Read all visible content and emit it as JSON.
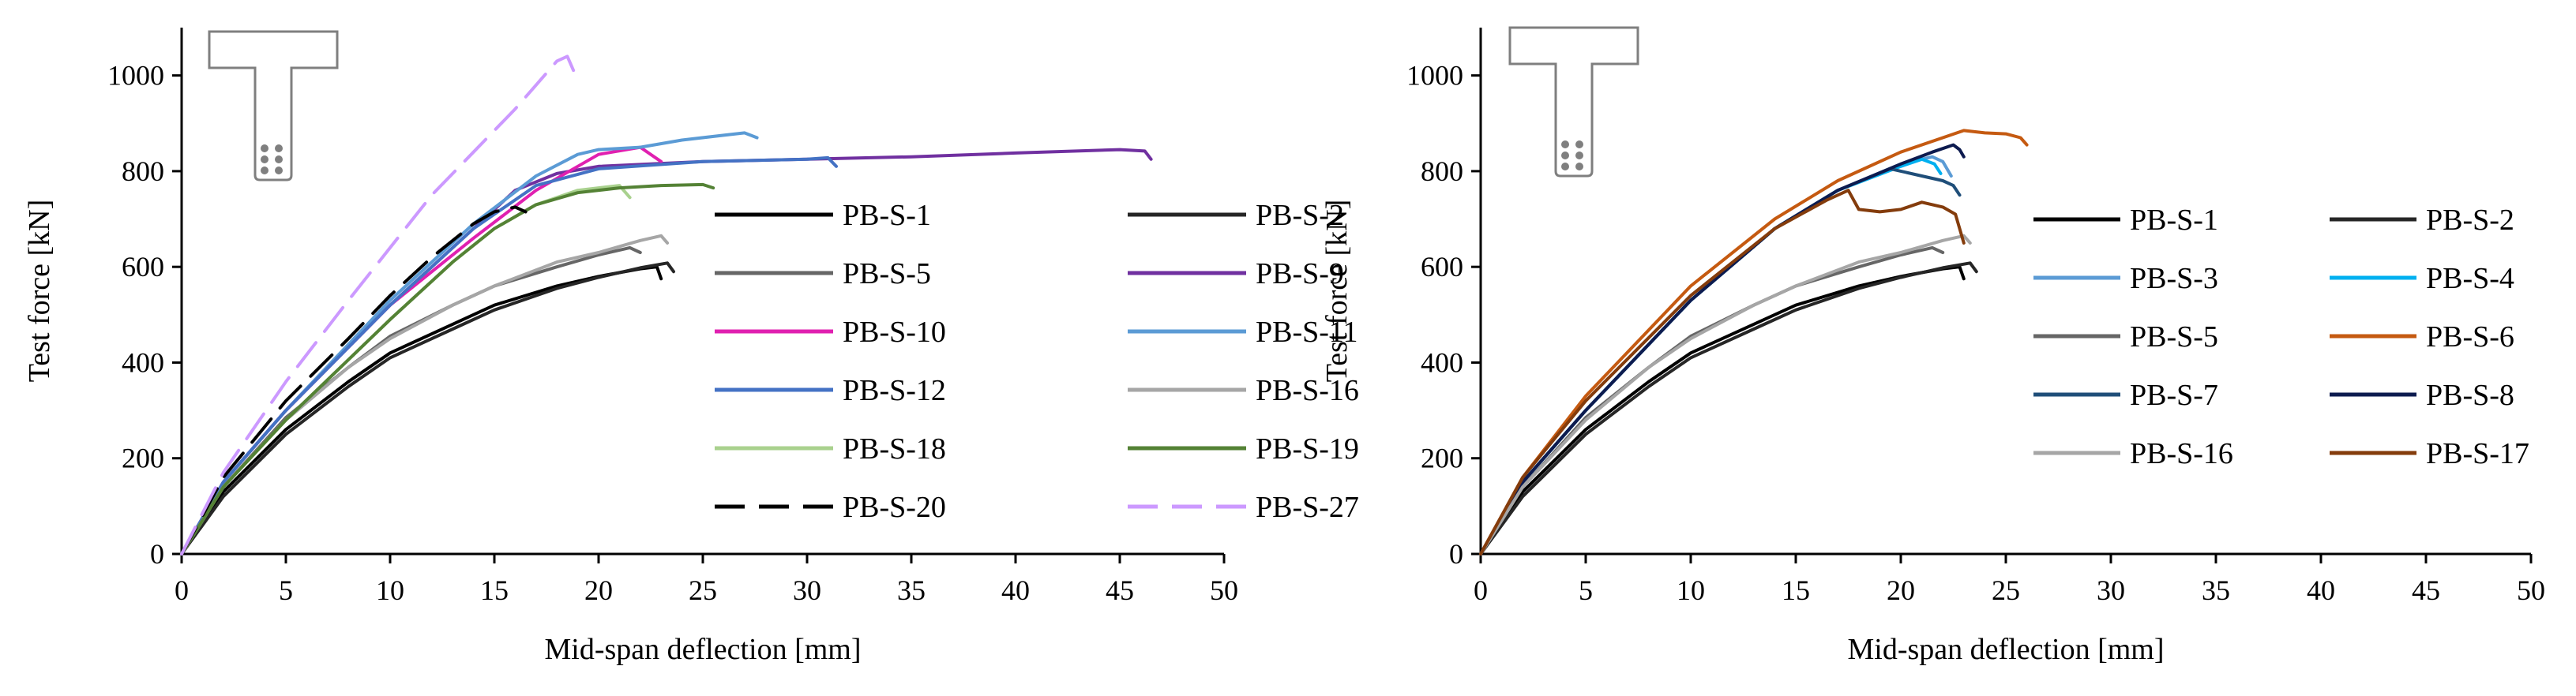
{
  "chart_data": [
    {
      "type": "line",
      "xlabel": "Mid-span deflection [mm]",
      "ylabel": "Test force [kN]",
      "xlim": [
        0,
        50
      ],
      "ylim": [
        0,
        1100
      ],
      "xticks": [
        0,
        5,
        10,
        15,
        20,
        25,
        30,
        35,
        40,
        45,
        50
      ],
      "yticks": [
        0,
        200,
        400,
        600,
        800,
        1000
      ],
      "legend_position": "bottom-right",
      "inset_icon": "t-beam-cross-section-icon",
      "series": [
        {
          "name": "PB-S-1",
          "color": "#000000",
          "dash": "solid",
          "x": [
            0,
            2,
            5,
            8,
            10,
            13,
            15,
            18,
            20,
            22,
            22.8,
            23
          ],
          "y": [
            0,
            130,
            260,
            360,
            420,
            480,
            520,
            560,
            580,
            596,
            600,
            575
          ]
        },
        {
          "name": "PB-S-2",
          "color": "#262626",
          "dash": "solid",
          "x": [
            0,
            2,
            5,
            8,
            10,
            13,
            15,
            18,
            20,
            22,
            23.3,
            23.6
          ],
          "y": [
            0,
            120,
            250,
            350,
            410,
            470,
            510,
            555,
            578,
            598,
            608,
            590
          ]
        },
        {
          "name": "PB-S-5",
          "color": "#666666",
          "dash": "solid",
          "x": [
            0,
            2,
            5,
            8,
            10,
            13,
            15,
            18,
            20,
            21.5,
            22
          ],
          "y": [
            0,
            140,
            285,
            390,
            455,
            520,
            560,
            600,
            625,
            640,
            630
          ]
        },
        {
          "name": "PB-S-9",
          "color": "#7030a0",
          "dash": "solid",
          "x": [
            0,
            2,
            5,
            10,
            14,
            16,
            18,
            20,
            25,
            30,
            35,
            40,
            45,
            46.2,
            46.5
          ],
          "y": [
            0,
            150,
            300,
            520,
            680,
            760,
            795,
            810,
            820,
            825,
            830,
            838,
            845,
            842,
            825
          ]
        },
        {
          "name": "PB-S-10",
          "color": "#e020b0",
          "dash": "solid",
          "x": [
            0,
            2,
            5,
            10,
            14,
            17,
            20,
            22,
            23
          ],
          "y": [
            0,
            150,
            300,
            520,
            660,
            760,
            835,
            850,
            820
          ]
        },
        {
          "name": "PB-S-11",
          "color": "#5b9bd5",
          "dash": "solid",
          "x": [
            0,
            2,
            5,
            10,
            14,
            17,
            19,
            20,
            22,
            24,
            26,
            27,
            27.6
          ],
          "y": [
            0,
            150,
            300,
            530,
            690,
            790,
            835,
            845,
            850,
            865,
            875,
            880,
            870
          ]
        },
        {
          "name": "PB-S-12",
          "color": "#4472c4",
          "dash": "solid",
          "x": [
            0,
            2,
            5,
            10,
            14,
            17,
            20,
            25,
            30,
            31,
            31.4
          ],
          "y": [
            0,
            150,
            300,
            520,
            680,
            770,
            805,
            820,
            825,
            828,
            810
          ]
        },
        {
          "name": "PB-S-16",
          "color": "#a6a6a6",
          "dash": "solid",
          "x": [
            0,
            2,
            5,
            8,
            10,
            13,
            15,
            18,
            20,
            22,
            23,
            23.3
          ],
          "y": [
            0,
            140,
            280,
            390,
            450,
            520,
            560,
            610,
            630,
            655,
            665,
            650
          ]
        },
        {
          "name": "PB-S-18",
          "color": "#a9d18e",
          "dash": "solid",
          "x": [
            0,
            2,
            5,
            10,
            13,
            15,
            17,
            19,
            21,
            21.5
          ],
          "y": [
            0,
            140,
            280,
            490,
            610,
            680,
            730,
            760,
            770,
            745
          ]
        },
        {
          "name": "PB-S-19",
          "color": "#548235",
          "dash": "solid",
          "x": [
            0,
            2,
            5,
            10,
            13,
            15,
            17,
            19,
            21,
            23,
            25,
            25.5
          ],
          "y": [
            0,
            140,
            280,
            490,
            610,
            680,
            730,
            755,
            765,
            770,
            772,
            765
          ]
        },
        {
          "name": "PB-S-20",
          "color": "#000000",
          "dash": "long-dash",
          "x": [
            0,
            2,
            5,
            8,
            10,
            12,
            14,
            15,
            16,
            16.5
          ],
          "y": [
            0,
            160,
            320,
            450,
            540,
            620,
            690,
            715,
            725,
            715
          ]
        },
        {
          "name": "PB-S-27",
          "color": "#cc99ff",
          "dash": "long-dash",
          "x": [
            0,
            2,
            5,
            8,
            10,
            12,
            14,
            16,
            17,
            18,
            18.5,
            18.8
          ],
          "y": [
            0,
            170,
            360,
            530,
            640,
            750,
            840,
            930,
            980,
            1030,
            1040,
            1010
          ]
        }
      ]
    },
    {
      "type": "line",
      "xlabel": "Mid-span deflection  [mm]",
      "ylabel": "Test force [kN]",
      "xlim": [
        0,
        50
      ],
      "ylim": [
        0,
        1100
      ],
      "xticks": [
        0,
        5,
        10,
        15,
        20,
        25,
        30,
        35,
        40,
        45,
        50
      ],
      "yticks": [
        0,
        200,
        400,
        600,
        800,
        1000
      ],
      "legend_position": "bottom-right",
      "inset_icon": "t-beam-cross-section-icon",
      "series": [
        {
          "name": "PB-S-1",
          "color": "#000000",
          "dash": "solid",
          "x": [
            0,
            2,
            5,
            8,
            10,
            13,
            15,
            18,
            20,
            22,
            22.8,
            23
          ],
          "y": [
            0,
            130,
            260,
            360,
            420,
            480,
            520,
            560,
            580,
            596,
            600,
            575
          ]
        },
        {
          "name": "PB-S-2",
          "color": "#262626",
          "dash": "solid",
          "x": [
            0,
            2,
            5,
            8,
            10,
            13,
            15,
            18,
            20,
            22,
            23.3,
            23.6
          ],
          "y": [
            0,
            120,
            250,
            350,
            410,
            470,
            510,
            555,
            578,
            598,
            608,
            590
          ]
        },
        {
          "name": "PB-S-3",
          "color": "#5b9bd5",
          "dash": "solid",
          "x": [
            0,
            2,
            5,
            10,
            14,
            17,
            20,
            21.5,
            22,
            22.4
          ],
          "y": [
            0,
            150,
            300,
            530,
            680,
            760,
            815,
            830,
            820,
            790
          ]
        },
        {
          "name": "PB-S-4",
          "color": "#00b0f0",
          "dash": "solid",
          "x": [
            0,
            2,
            5,
            10,
            14,
            17,
            20,
            21,
            21.6,
            21.9
          ],
          "y": [
            0,
            150,
            300,
            530,
            680,
            760,
            810,
            825,
            815,
            795
          ]
        },
        {
          "name": "PB-S-5",
          "color": "#666666",
          "dash": "solid",
          "x": [
            0,
            2,
            5,
            8,
            10,
            13,
            15,
            18,
            20,
            21.5,
            22
          ],
          "y": [
            0,
            140,
            285,
            390,
            455,
            520,
            560,
            600,
            625,
            640,
            630
          ]
        },
        {
          "name": "PB-S-6",
          "color": "#c55a11",
          "dash": "solid",
          "x": [
            0,
            2,
            5,
            10,
            14,
            17,
            20,
            22,
            23,
            24,
            25,
            25.7,
            26
          ],
          "y": [
            0,
            160,
            330,
            560,
            700,
            780,
            840,
            870,
            885,
            880,
            878,
            870,
            855
          ]
        },
        {
          "name": "PB-S-7",
          "color": "#1f4e79",
          "dash": "solid",
          "x": [
            0,
            2,
            5,
            10,
            14,
            17,
            19.5,
            20,
            21,
            22,
            22.5,
            22.8
          ],
          "y": [
            0,
            150,
            300,
            530,
            680,
            760,
            805,
            800,
            790,
            780,
            770,
            750
          ]
        },
        {
          "name": "PB-S-8",
          "color": "#0d1b4f",
          "dash": "solid",
          "x": [
            0,
            2,
            5,
            10,
            14,
            17,
            20,
            21.5,
            22.5,
            22.8,
            23
          ],
          "y": [
            0,
            150,
            300,
            530,
            680,
            760,
            815,
            840,
            855,
            845,
            830
          ]
        },
        {
          "name": "PB-S-16",
          "color": "#a6a6a6",
          "dash": "solid",
          "x": [
            0,
            2,
            5,
            8,
            10,
            13,
            15,
            18,
            20,
            22,
            23,
            23.3
          ],
          "y": [
            0,
            140,
            280,
            390,
            450,
            520,
            560,
            610,
            630,
            655,
            665,
            650
          ]
        },
        {
          "name": "PB-S-17",
          "color": "#843c0c",
          "dash": "solid",
          "x": [
            0,
            2,
            5,
            10,
            14,
            16.5,
            17.5,
            18,
            19,
            20,
            21,
            22,
            22.6,
            23
          ],
          "y": [
            0,
            160,
            320,
            540,
            680,
            740,
            760,
            720,
            715,
            720,
            735,
            725,
            710,
            650
          ]
        }
      ]
    }
  ]
}
